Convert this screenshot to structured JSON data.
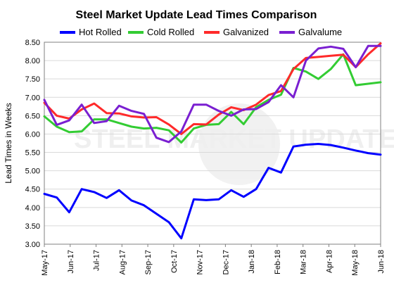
{
  "chart_data": {
    "type": "line",
    "title": "Steel Market Update Lead Times Comparison",
    "xlabel": "",
    "ylabel": "Lead Times in Weeks",
    "ylim": [
      3.0,
      8.5
    ],
    "y_ticks": [
      "3.00",
      "3.50",
      "4.00",
      "4.50",
      "5.00",
      "5.50",
      "6.00",
      "6.50",
      "7.00",
      "7.50",
      "8.00",
      "8.50"
    ],
    "x_tick_labels": [
      "May-17",
      "Jun-17",
      "Jul-17",
      "Aug-17",
      "Sep-17",
      "Oct-17",
      "Nov-17",
      "Dec-17",
      "Jan-18",
      "Feb-18",
      "Mar-18",
      "Apr-18",
      "May-18",
      "Jun-18"
    ],
    "grid": true,
    "legend_position": "top",
    "watermark": "STEEL MARKET UPDATE",
    "series": [
      {
        "name": "Hot Rolled",
        "color": "#0000ff",
        "values": [
          4.37,
          4.27,
          3.87,
          4.5,
          4.42,
          4.26,
          4.47,
          4.19,
          4.06,
          3.83,
          3.6,
          3.16,
          4.22,
          4.2,
          4.22,
          4.47,
          4.29,
          4.5,
          5.08,
          4.95,
          5.66,
          5.71,
          5.73,
          5.7,
          5.63,
          5.55,
          5.48,
          5.44
        ]
      },
      {
        "name": "Cold Rolled",
        "color": "#33cc33",
        "values": [
          6.48,
          6.2,
          6.05,
          6.07,
          6.4,
          6.4,
          6.3,
          6.2,
          6.15,
          6.17,
          6.1,
          5.77,
          6.15,
          6.25,
          6.27,
          6.6,
          6.27,
          6.73,
          6.93,
          7.07,
          7.8,
          7.7,
          7.5,
          7.77,
          8.17,
          7.33,
          7.37,
          7.41
        ]
      },
      {
        "name": "Galvanized",
        "color": "#ff2a2a",
        "values": [
          6.85,
          6.5,
          6.42,
          6.67,
          6.83,
          6.57,
          6.56,
          6.48,
          6.45,
          6.46,
          6.26,
          6.0,
          6.27,
          6.26,
          6.53,
          6.73,
          6.65,
          6.8,
          7.06,
          7.17,
          7.77,
          8.07,
          8.1,
          8.13,
          8.16,
          7.82,
          8.17,
          8.47
        ]
      },
      {
        "name": "Galvalume",
        "color": "#7a1fd1",
        "values": [
          6.93,
          6.25,
          6.37,
          6.8,
          6.3,
          6.35,
          6.77,
          6.63,
          6.55,
          5.9,
          5.78,
          6.07,
          6.8,
          6.8,
          6.63,
          6.5,
          6.67,
          6.68,
          6.87,
          7.33,
          7.0,
          8.0,
          8.33,
          8.38,
          8.32,
          7.82,
          8.4,
          8.4
        ]
      }
    ]
  }
}
